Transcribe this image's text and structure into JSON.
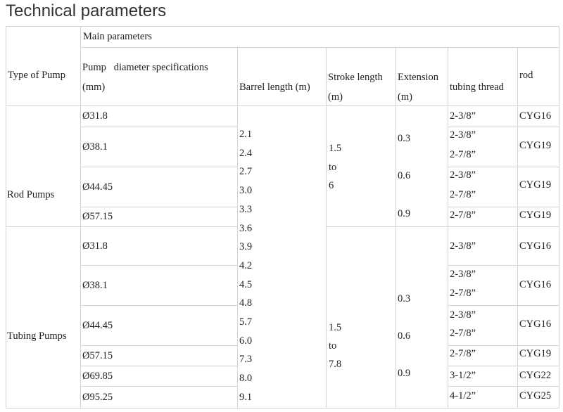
{
  "title": "Technical parameters",
  "header": {
    "main_parameters": "Main parameters",
    "columns": [
      [
        "Type of Pump"
      ],
      [
        "Pump   diameter specifications",
        "(mm)"
      ],
      [
        "Barrel length (m)"
      ],
      [
        "Stroke length",
        "(m)"
      ],
      [
        "Extension",
        "(m)"
      ],
      [
        "tubing thread"
      ],
      [
        "rod"
      ]
    ]
  },
  "barrel_lengths": [
    "2.1",
    "2.4",
    "2.7",
    "3.0",
    "3.3",
    "3.6",
    "3.9",
    "4.2",
    "4.5",
    "4.8",
    "5.7",
    "6.0",
    "7.3",
    "8.0",
    "9.1"
  ],
  "groups": [
    {
      "type": "Rod Pumps",
      "stroke": [
        "1.5",
        "to",
        "6"
      ],
      "extension": [
        "0.3",
        "0.6",
        "0.9"
      ],
      "rows": [
        {
          "diameter": "Ø31.8",
          "threads": [
            "2-3/8”"
          ],
          "rod": "CYG16"
        },
        {
          "diameter": "Ø38.1",
          "threads": [
            "2-3/8”",
            "2-7/8”"
          ],
          "rod": "CYG19"
        },
        {
          "diameter": "Ø44.45",
          "threads": [
            "2-3/8”",
            "2-7/8”"
          ],
          "rod": "CYG19"
        },
        {
          "diameter": "Ø57.15",
          "threads": [
            "2-7/8”"
          ],
          "rod": "CYG19"
        }
      ]
    },
    {
      "type": "Tubing Pumps",
      "stroke": [
        "1.5",
        "to",
        "7.8"
      ],
      "extension": [
        "0.3",
        "0.6",
        "0.9"
      ],
      "rows": [
        {
          "diameter": "Ø31.8",
          "threads": [
            "2-3/8”"
          ],
          "rod": "CYG16"
        },
        {
          "diameter": "Ø38.1",
          "threads": [
            "2-3/8”",
            "2-7/8”"
          ],
          "rod": "CYG16"
        },
        {
          "diameter": "Ø44.45",
          "threads": [
            "2-3/8”",
            "2-7/8”"
          ],
          "rod": "CYG16"
        },
        {
          "diameter": "Ø57.15",
          "threads": [
            "2-7/8”"
          ],
          "rod": "CYG19"
        },
        {
          "diameter": "Ø69.85",
          "threads": [
            "3-1/2”"
          ],
          "rod": "CYG22"
        },
        {
          "diameter": "Ø95.25",
          "threads": [
            "4-1/2”"
          ],
          "rod": "CYG25"
        }
      ]
    }
  ]
}
